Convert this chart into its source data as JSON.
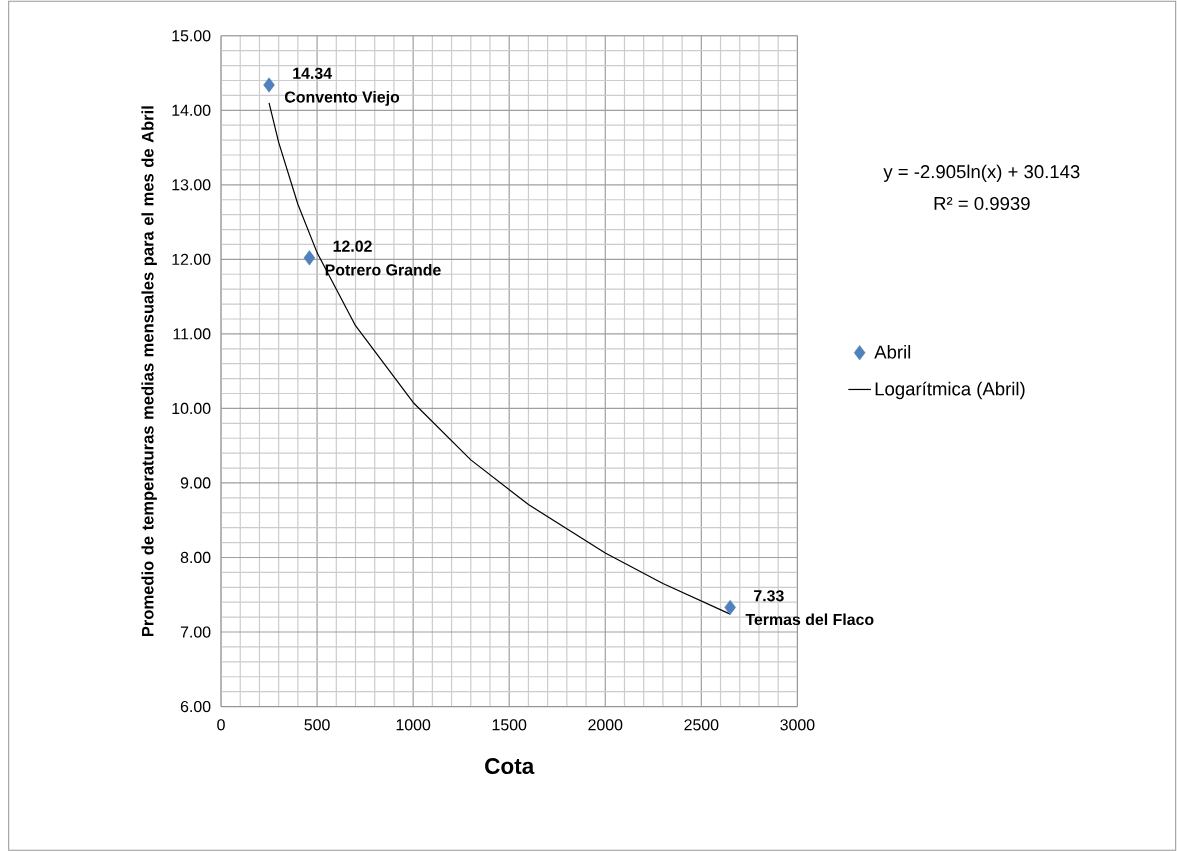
{
  "chart_data": {
    "type": "scatter",
    "xlabel": "Cota",
    "ylabel": "Promedio de temperaturas medias mensuales para el mes de Abril",
    "xlim": [
      0,
      3000
    ],
    "ylim": [
      6,
      15
    ],
    "xticks": [
      0,
      500,
      1000,
      1500,
      2000,
      2500,
      3000
    ],
    "yticks": [
      {
        "value": 6,
        "label": "6.00"
      },
      {
        "value": 7,
        "label": "7.00"
      },
      {
        "value": 8,
        "label": "8.00"
      },
      {
        "value": 9,
        "label": "9.00"
      },
      {
        "value": 10,
        "label": "10.00"
      },
      {
        "value": 11,
        "label": "11.00"
      },
      {
        "value": 12,
        "label": "12.00"
      },
      {
        "value": 13,
        "label": "13.00"
      },
      {
        "value": 14,
        "label": "14.00"
      },
      {
        "value": 15,
        "label": "15.00"
      }
    ],
    "grid": true,
    "legend": "right",
    "marker": "diamond",
    "series": [
      {
        "name": "Abril",
        "color": "#4f81bd",
        "x": [
          250,
          460,
          2650
        ],
        "values": [
          14.34,
          12.02,
          7.33
        ],
        "value_labels": [
          "14.34",
          "12.02",
          "7.33"
        ]
      },
      {
        "name": "Logarítmica (Abril)",
        "type": "line",
        "marker": "none",
        "color": "#000000",
        "x": [
          250,
          300,
          400,
          500,
          700,
          1000,
          1300,
          1600,
          2000,
          2300,
          2650
        ],
        "values": [
          14.1,
          13.57,
          12.74,
          12.09,
          11.11,
          10.08,
          9.31,
          8.71,
          8.06,
          7.65,
          7.24
        ]
      }
    ],
    "annotations": [
      {
        "text": "Convento Viejo",
        "x": 250,
        "y": 14.34
      },
      {
        "text": "Potrero Grande",
        "x": 460,
        "y": 12.02
      },
      {
        "text": "Termas del Flaco",
        "x": 2650,
        "y": 7.33
      },
      "y = -2.905ln(x) + 30.143",
      "R² = 0.9939"
    ]
  }
}
